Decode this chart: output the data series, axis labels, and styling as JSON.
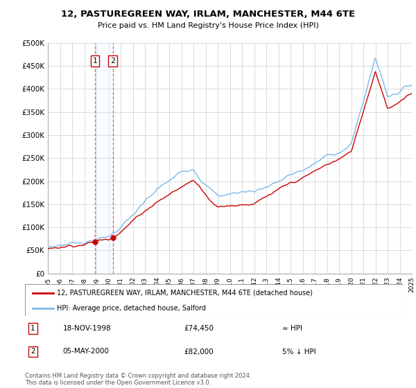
{
  "title": "12, PASTUREGREEN WAY, IRLAM, MANCHESTER, M44 6TE",
  "subtitle": "Price paid vs. HM Land Registry's House Price Index (HPI)",
  "legend_line1": "12, PASTUREGREEN WAY, IRLAM, MANCHESTER, M44 6TE (detached house)",
  "legend_line2": "HPI: Average price, detached house, Salford",
  "transaction1_date": "18-NOV-1998",
  "transaction1_price": "£74,450",
  "transaction1_hpi": "≈ HPI",
  "transaction2_date": "05-MAY-2000",
  "transaction2_price": "£82,000",
  "transaction2_hpi": "5% ↓ HPI",
  "footer": "Contains HM Land Registry data © Crown copyright and database right 2024.\nThis data is licensed under the Open Government Licence v3.0.",
  "ylabel_ticks": [
    "£0",
    "£50K",
    "£100K",
    "£150K",
    "£200K",
    "£250K",
    "£300K",
    "£350K",
    "£400K",
    "£450K",
    "£500K"
  ],
  "ytick_values": [
    0,
    50000,
    100000,
    150000,
    200000,
    250000,
    300000,
    350000,
    400000,
    450000,
    500000
  ],
  "hpi_color": "#7ab8e8",
  "price_color": "#cc0000",
  "marker_color": "#cc0000",
  "vline_color": "#cc4444",
  "shade_color": "#ddeeff",
  "transaction1_x": 1998.88,
  "transaction2_x": 2000.35,
  "background_color": "#ffffff",
  "grid_color": "#cccccc",
  "ylim_max": 500000,
  "xlim_min": 1995,
  "xlim_max": 2025
}
